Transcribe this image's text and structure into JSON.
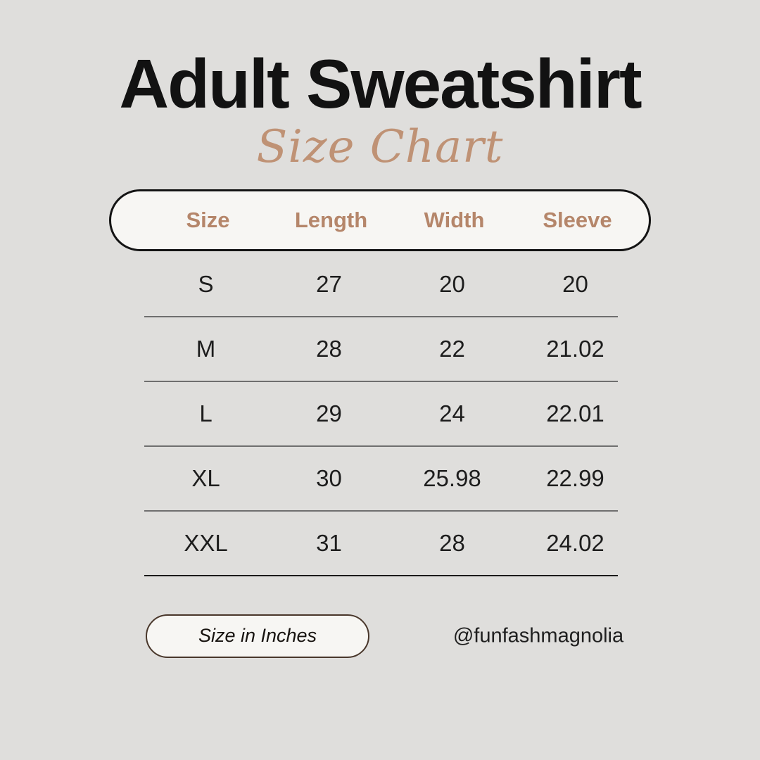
{
  "header": {
    "title": "Adult Sweatshirt",
    "subtitle": "Size Chart"
  },
  "chart_data": {
    "type": "table",
    "title": "Adult Sweatshirt Size Chart",
    "unit": "inches",
    "columns": [
      "Size",
      "Length",
      "Width",
      "Sleeve"
    ],
    "rows": [
      [
        "S",
        "27",
        "20",
        "20"
      ],
      [
        "M",
        "28",
        "22",
        "21.02"
      ],
      [
        "L",
        "29",
        "24",
        "22.01"
      ],
      [
        "XL",
        "30",
        "25.98",
        "22.99"
      ],
      [
        "XXL",
        "31",
        "28",
        "24.02"
      ]
    ]
  },
  "footer": {
    "unit_badge_label": "Size in Inches",
    "handle": "@funfashmagnolia"
  },
  "colors": {
    "background": "#dfdedc",
    "accent_tan": "#b5866a",
    "script_tan": "#bf9275",
    "pill_fill": "#f7f6f3",
    "pill_border": "#141414",
    "badge_border": "#49372b",
    "separator_gray": "#6f6f6f",
    "separator_black": "#1a1a1a",
    "text": "#1c1c1c"
  }
}
